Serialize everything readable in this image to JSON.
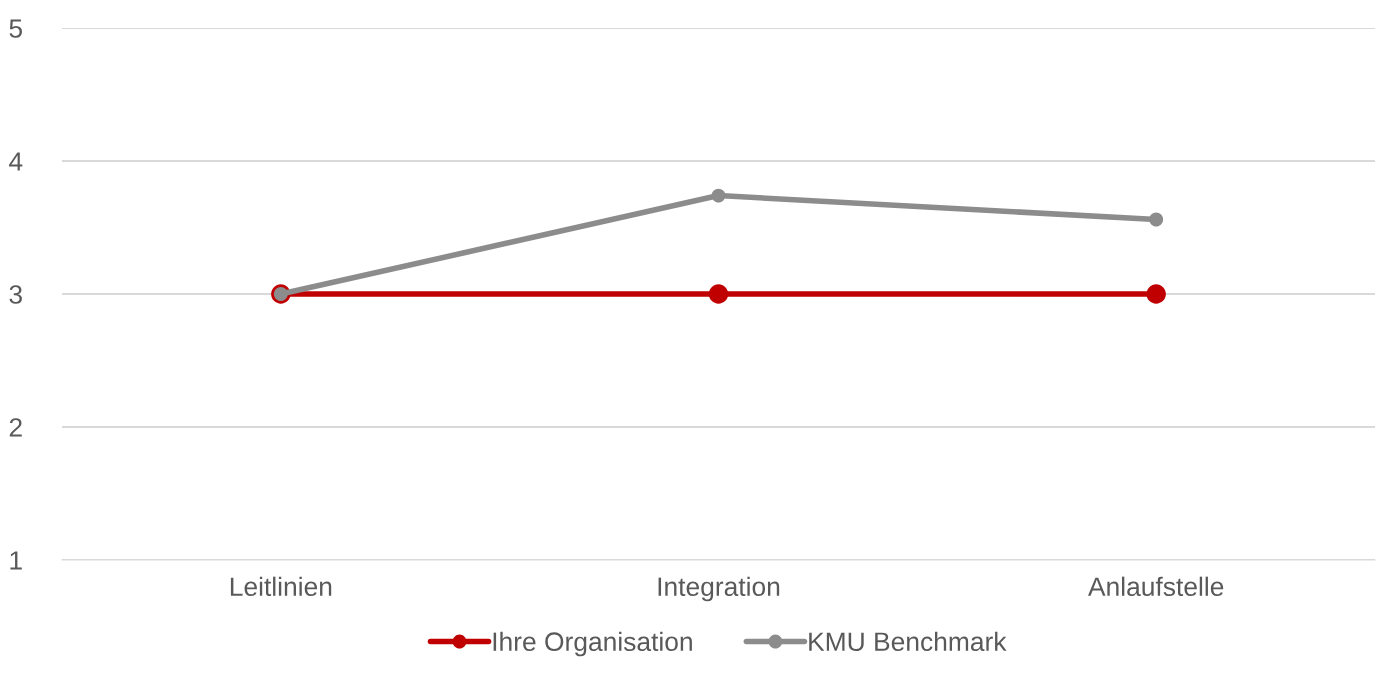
{
  "chart_data": {
    "type": "line",
    "categories": [
      "Leitlinien",
      "Integration",
      "Anlaufstelle"
    ],
    "series": [
      {
        "name": "Ihre Organisation",
        "color": "#c00000",
        "values": [
          3,
          3,
          3
        ]
      },
      {
        "name": "KMU Benchmark",
        "color": "#8c8c8c",
        "values": [
          3,
          3.74,
          3.56
        ]
      }
    ],
    "ylim": [
      1,
      5
    ],
    "yticks": [
      1,
      2,
      3,
      4,
      5
    ],
    "grid": "y",
    "legend": "bottom",
    "marker": "circle",
    "line_style": "solid"
  }
}
